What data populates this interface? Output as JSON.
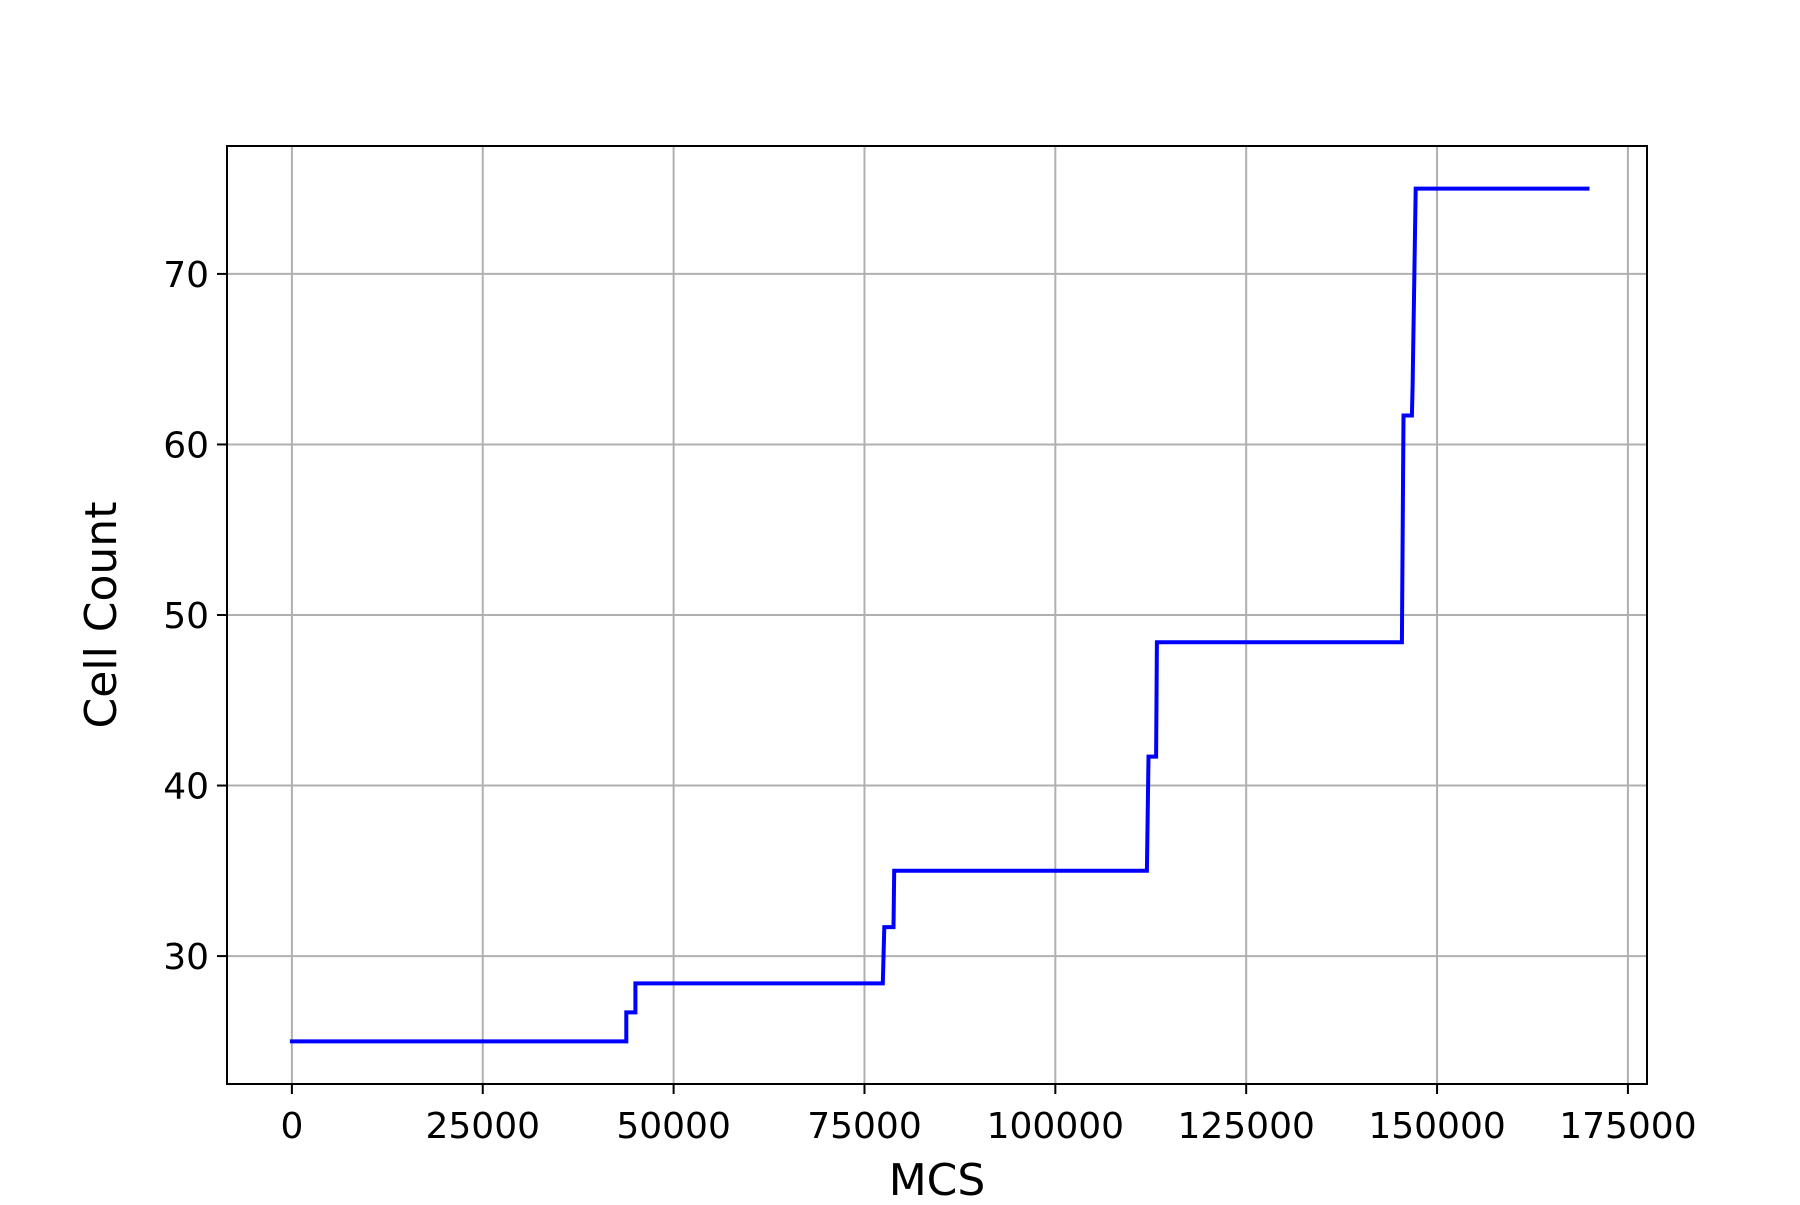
{
  "chart_data": {
    "type": "line",
    "title": "",
    "xlabel": "MCS",
    "ylabel": "Cell Count",
    "xlim": [
      -8500,
      177500
    ],
    "ylim": [
      22.5,
      77.5
    ],
    "x_ticks": [
      0,
      25000,
      50000,
      75000,
      100000,
      125000,
      150000,
      175000
    ],
    "x_tick_labels": [
      "0",
      "25000",
      "50000",
      "75000",
      "100000",
      "125000",
      "150000",
      "175000"
    ],
    "y_ticks": [
      30,
      40,
      50,
      60,
      70
    ],
    "y_tick_labels": [
      "30",
      "40",
      "50",
      "60",
      "70"
    ],
    "grid": true,
    "legend": "none",
    "colors": {
      "line": "#0000ff",
      "grid": "#b0b0b0",
      "axes": "#000000"
    },
    "series": [
      {
        "x": [
          0,
          43800,
          43800,
          45000,
          45000,
          77400,
          77600,
          78800,
          78900,
          112000,
          112200,
          113200,
          113300,
          145400,
          145600,
          146700,
          146800,
          147200,
          169700
        ],
        "y": [
          25,
          25,
          26.7,
          26.7,
          28.4,
          28.4,
          31.7,
          31.7,
          35,
          35,
          41.7,
          41.7,
          48.4,
          48.4,
          61.7,
          61.7,
          63.4,
          75,
          75
        ]
      }
    ]
  }
}
